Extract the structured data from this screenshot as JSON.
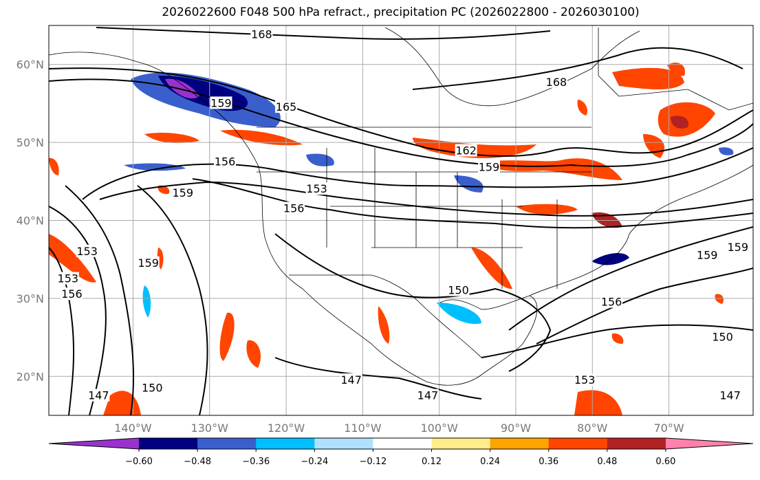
{
  "title": "2026022600 F048 500 hPa refract., precipitation PC (2026022800 - 2026030100)",
  "map": {
    "lat_labels": [
      {
        "lat": 60,
        "text": "60°N"
      },
      {
        "lat": 50,
        "text": "50°N"
      },
      {
        "lat": 40,
        "text": "40°N"
      },
      {
        "lat": 30,
        "text": "30°N"
      },
      {
        "lat": 20,
        "text": "20°N"
      }
    ],
    "lon_labels": [
      {
        "lon": -140,
        "text": "140°W"
      },
      {
        "lon": -130,
        "text": "130°W"
      },
      {
        "lon": -120,
        "text": "120°W"
      },
      {
        "lon": -110,
        "text": "110°W"
      },
      {
        "lon": -100,
        "text": "100°W"
      },
      {
        "lon": -90,
        "text": "90°W"
      },
      {
        "lon": -80,
        "text": "80°W"
      },
      {
        "lon": -70,
        "text": "70°W"
      }
    ],
    "extent": {
      "lon_min": -151,
      "lon_max": -59,
      "lat_min": 15,
      "lat_max": 65
    },
    "contour_labels": [
      {
        "text": "168",
        "lon": -123.2,
        "lat": 63.8
      },
      {
        "text": "168",
        "lon": -84.7,
        "lat": 57.7
      },
      {
        "text": "165",
        "lon": -120,
        "lat": 54.5
      },
      {
        "text": "159",
        "lon": -128.5,
        "lat": 55
      },
      {
        "text": "162",
        "lon": -96.5,
        "lat": 48.9
      },
      {
        "text": "159",
        "lon": -93.5,
        "lat": 46.8
      },
      {
        "text": "156",
        "lon": -128,
        "lat": 47.5
      },
      {
        "text": "153",
        "lon": -116,
        "lat": 44
      },
      {
        "text": "159",
        "lon": -133.5,
        "lat": 43.5
      },
      {
        "text": "156",
        "lon": -119,
        "lat": 41.5
      },
      {
        "text": "153",
        "lon": -146,
        "lat": 36
      },
      {
        "text": "159",
        "lon": -138,
        "lat": 34.5
      },
      {
        "text": "153",
        "lon": -148.5,
        "lat": 32.5
      },
      {
        "text": "156",
        "lon": -148,
        "lat": 30.5
      },
      {
        "text": "150",
        "lon": -97.5,
        "lat": 31
      },
      {
        "text": "156",
        "lon": -77.5,
        "lat": 29.5
      },
      {
        "text": "159",
        "lon": -65,
        "lat": 35.5
      },
      {
        "text": "159",
        "lon": -61,
        "lat": 36.5
      },
      {
        "text": "150",
        "lon": -63,
        "lat": 25
      },
      {
        "text": "147",
        "lon": -111.5,
        "lat": 19.5
      },
      {
        "text": "147",
        "lon": -101.5,
        "lat": 17.5
      },
      {
        "text": "147",
        "lon": -144.5,
        "lat": 17.5
      },
      {
        "text": "150",
        "lon": -137.5,
        "lat": 18.5
      },
      {
        "text": "153",
        "lon": -81,
        "lat": 19.5
      },
      {
        "text": "147",
        "lon": -62,
        "lat": 17.5
      }
    ]
  },
  "colorbar": {
    "colors": [
      "#9932CC",
      "#000080",
      "#3A5FCD",
      "#00BFFF",
      "#B0E2FF",
      "#FFFFFF",
      "#FFEC8B",
      "#FFA500",
      "#FF4500",
      "#B22222",
      "#FF82AB"
    ],
    "ticks": [
      "−0.60",
      "−0.48",
      "−0.36",
      "−0.24",
      "−0.12",
      "0.12",
      "0.24",
      "0.36",
      "0.48",
      "0.60"
    ]
  }
}
